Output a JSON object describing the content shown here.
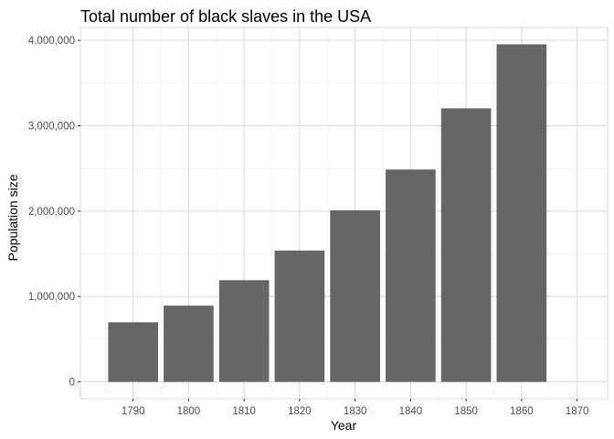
{
  "chart_data": {
    "type": "bar",
    "title": "Total number of black slaves in the USA",
    "xlabel": "Year",
    "ylabel": "Population size",
    "categories": [
      1790,
      1800,
      1810,
      1820,
      1830,
      1840,
      1850,
      1860
    ],
    "values": [
      697897,
      893041,
      1191364,
      1538038,
      2009043,
      2487355,
      3204287,
      3953762
    ],
    "x_ticks": [
      1790,
      1800,
      1810,
      1820,
      1830,
      1840,
      1850,
      1860,
      1870
    ],
    "x_tick_labels": [
      "1790",
      "1800",
      "1810",
      "1820",
      "1830",
      "1840",
      "1850",
      "1860",
      "1870"
    ],
    "y_ticks": [
      0,
      1000000,
      2000000,
      3000000,
      4000000
    ],
    "y_tick_labels": [
      "0",
      "1,000,000",
      "2,000,000",
      "3,000,000",
      "4,000,000"
    ],
    "xlim": [
      1780.5,
      1875.5
    ],
    "ylim": [
      -197688,
      4151450
    ],
    "grid": true,
    "legend": "none",
    "colors": {
      "bar": "#595959",
      "grid_major": "#d9d9d9",
      "grid_minor": "#ededed",
      "border": "#d9d9d9"
    }
  }
}
